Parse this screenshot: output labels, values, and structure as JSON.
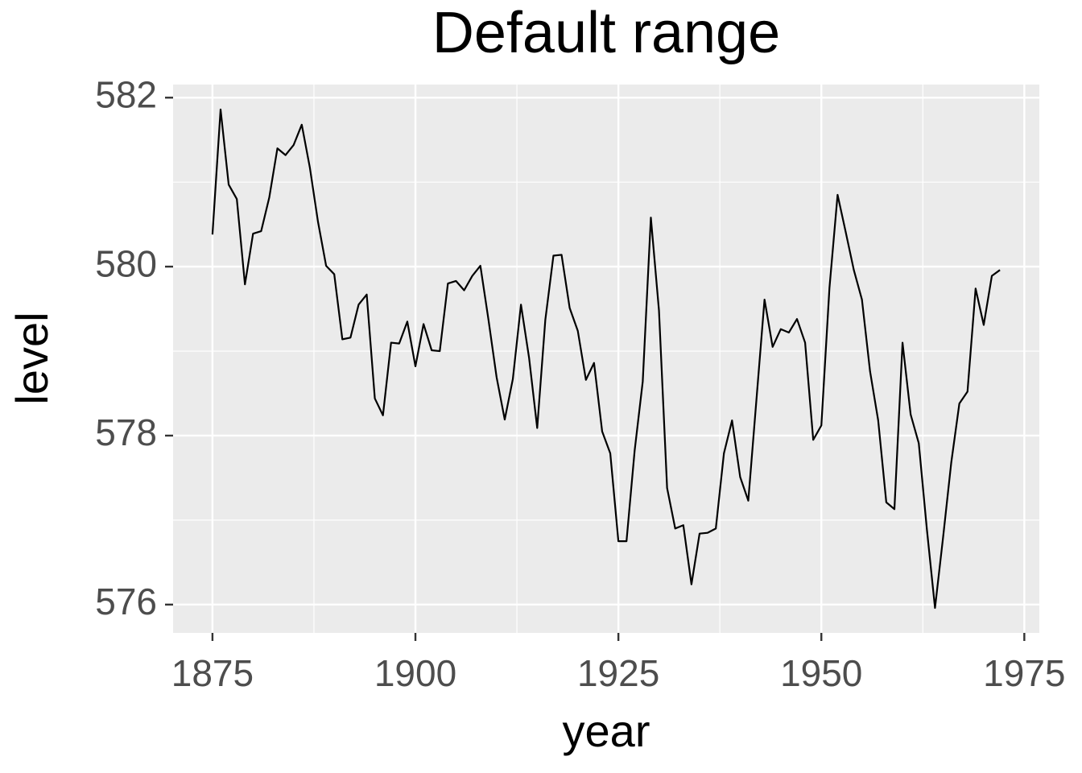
{
  "chart_data": {
    "type": "line",
    "title": "Default range",
    "x_label": "year",
    "y_label": "level",
    "x": [
      1875,
      1876,
      1877,
      1878,
      1879,
      1880,
      1881,
      1882,
      1883,
      1884,
      1885,
      1886,
      1887,
      1888,
      1889,
      1890,
      1891,
      1892,
      1893,
      1894,
      1895,
      1896,
      1897,
      1898,
      1899,
      1900,
      1901,
      1902,
      1903,
      1904,
      1905,
      1906,
      1907,
      1908,
      1909,
      1910,
      1911,
      1912,
      1913,
      1914,
      1915,
      1916,
      1917,
      1918,
      1919,
      1920,
      1921,
      1922,
      1923,
      1924,
      1925,
      1926,
      1927,
      1928,
      1929,
      1930,
      1931,
      1932,
      1933,
      1934,
      1935,
      1936,
      1937,
      1938,
      1939,
      1940,
      1941,
      1942,
      1943,
      1944,
      1945,
      1946,
      1947,
      1948,
      1949,
      1950,
      1951,
      1952,
      1953,
      1954,
      1955,
      1956,
      1957,
      1958,
      1959,
      1960,
      1961,
      1962,
      1963,
      1964,
      1965,
      1966,
      1967,
      1968,
      1969,
      1970,
      1971,
      1972
    ],
    "series": [
      {
        "name": "level",
        "color": "#000000",
        "values": [
          580.38,
          581.86,
          580.97,
          580.8,
          579.79,
          580.39,
          580.42,
          580.82,
          581.4,
          581.32,
          581.44,
          581.68,
          581.17,
          580.53,
          580.01,
          579.91,
          579.14,
          579.16,
          579.55,
          579.67,
          578.44,
          578.24,
          579.1,
          579.09,
          579.35,
          578.82,
          579.32,
          579.01,
          579.0,
          579.8,
          579.83,
          579.72,
          579.89,
          580.01,
          579.37,
          578.69,
          578.19,
          578.67,
          579.55,
          578.92,
          578.09,
          579.37,
          580.13,
          580.14,
          579.51,
          579.24,
          578.66,
          578.86,
          578.05,
          577.79,
          576.75,
          576.75,
          577.82,
          578.64,
          580.58,
          579.48,
          577.38,
          576.9,
          576.94,
          576.24,
          576.84,
          576.85,
          576.9,
          577.79,
          578.18,
          577.51,
          577.23,
          578.42,
          579.61,
          579.05,
          579.26,
          579.22,
          579.38,
          579.1,
          577.95,
          578.12,
          579.75,
          580.85,
          580.41,
          579.96,
          579.61,
          578.76,
          578.18,
          577.21,
          577.13,
          579.1,
          578.25,
          577.91,
          576.89,
          575.96,
          576.8,
          577.68,
          578.38,
          578.52,
          579.74,
          579.31,
          579.89,
          579.96
        ]
      }
    ],
    "xlim": [
      1870.15,
      1976.85
    ],
    "ylim": [
      575.665,
      582.155
    ],
    "xticks": [
      1875,
      1900,
      1925,
      1950,
      1975
    ],
    "yticks": [
      576,
      578,
      580,
      582
    ],
    "grid": true
  }
}
